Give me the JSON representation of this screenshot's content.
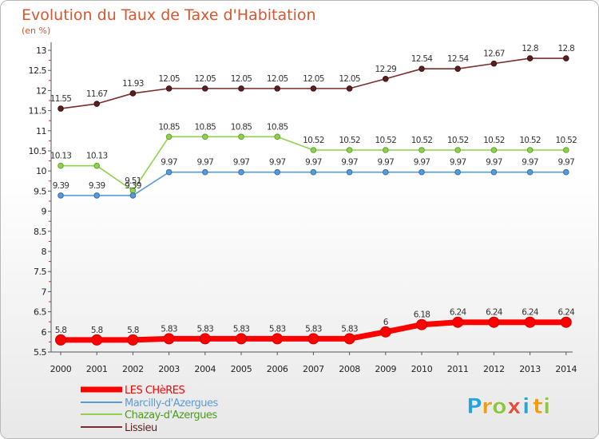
{
  "chart_data": {
    "type": "line",
    "title": "Evolution du Taux de Taxe d'Habitation",
    "subtitle": "(en %)",
    "x": [
      "2000",
      "2001",
      "2002",
      "2003",
      "2004",
      "2005",
      "2006",
      "2007",
      "2008",
      "2009",
      "2010",
      "2011",
      "2012",
      "2013",
      "2014"
    ],
    "y_ticks": [
      "5.5",
      "6",
      "6.5",
      "7",
      "7.5",
      "8",
      "8.5",
      "9",
      "9.5",
      "10",
      "10.5",
      "11",
      "11.5",
      "12",
      "12.5",
      "13"
    ],
    "ylim": [
      5.5,
      13
    ],
    "grid": false,
    "legend_position": "bottom-left",
    "series": [
      {
        "name": "LES CHèRES",
        "color": "#ff0000",
        "values": [
          5.8,
          5.8,
          5.8,
          5.83,
          5.83,
          5.83,
          5.83,
          5.83,
          5.83,
          6,
          6.18,
          6.24,
          6.24,
          6.24,
          6.24
        ],
        "labels": [
          "5.8",
          "5.8",
          "5.8",
          "5.83",
          "5.83",
          "5.83",
          "5.83",
          "5.83",
          "5.83",
          "6",
          "6.18",
          "6.24",
          "6.24",
          "6.24",
          "6.24"
        ]
      },
      {
        "name": "Marcilly-d'Azergues",
        "color": "#5b9bd5",
        "values": [
          9.39,
          9.39,
          9.39,
          9.97,
          9.97,
          9.97,
          9.97,
          9.97,
          9.97,
          9.97,
          9.97,
          9.97,
          9.97,
          9.97,
          9.97
        ],
        "labels": [
          "9.39",
          "9.39",
          "9.39",
          "9.97",
          "9.97",
          "9.97",
          "9.97",
          "9.97",
          "9.97",
          "9.97",
          "9.97",
          "9.97",
          "9.97",
          "9.97",
          "9.97"
        ]
      },
      {
        "name": "Chazay-d'Azergues",
        "color": "#8fd14f",
        "values": [
          10.13,
          10.13,
          9.51,
          10.85,
          10.85,
          10.85,
          10.85,
          10.52,
          10.52,
          10.52,
          10.52,
          10.52,
          10.52,
          10.52,
          10.52
        ],
        "labels": [
          "10.13",
          "10.13",
          "9.51",
          "10.85",
          "10.85",
          "10.85",
          "10.85",
          "10.52",
          "10.52",
          "10.52",
          "10.52",
          "10.52",
          "10.52",
          "10.52",
          "10.52"
        ]
      },
      {
        "name": "Lissieu",
        "color": "#7b2d2d",
        "values": [
          11.55,
          11.67,
          11.93,
          12.05,
          12.05,
          12.05,
          12.05,
          12.05,
          12.05,
          12.29,
          12.54,
          12.54,
          12.67,
          12.8,
          12.8
        ],
        "labels": [
          "11.55",
          "11.67",
          "11.93",
          "12.05",
          "12.05",
          "12.05",
          "12.05",
          "12.05",
          "12.05",
          "12.29",
          "12.54",
          "12.54",
          "12.67",
          "12.8",
          "12.8"
        ]
      }
    ]
  },
  "logo": {
    "letters": [
      "P",
      "r",
      "o",
      "x",
      "i",
      "t",
      "i"
    ],
    "colors": [
      "#29a3dc",
      "#f39c12",
      "#8dc63f",
      "#e74c3c",
      "#29a3dc",
      "#f39c12",
      "#8dc63f"
    ]
  }
}
